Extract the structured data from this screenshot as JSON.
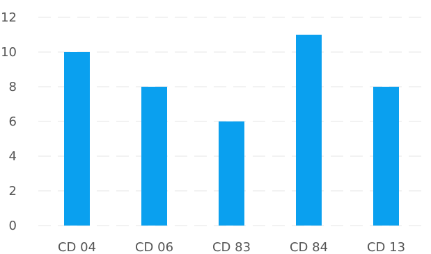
{
  "chart_data": {
    "type": "bar",
    "categories": [
      "CD 04",
      "CD 06",
      "CD 83",
      "CD 84",
      "CD 13"
    ],
    "values": [
      10,
      8,
      6,
      11,
      8
    ],
    "title": "",
    "xlabel": "",
    "ylabel": "",
    "ylim": [
      0,
      12
    ],
    "yticks": [
      "0",
      "2",
      "4",
      "6",
      "8",
      "10",
      "12"
    ],
    "grid": true,
    "legend": "none",
    "colors": {
      "bar": "#0aa0ef",
      "grid": "#eeeeee",
      "text": "#555555"
    }
  }
}
